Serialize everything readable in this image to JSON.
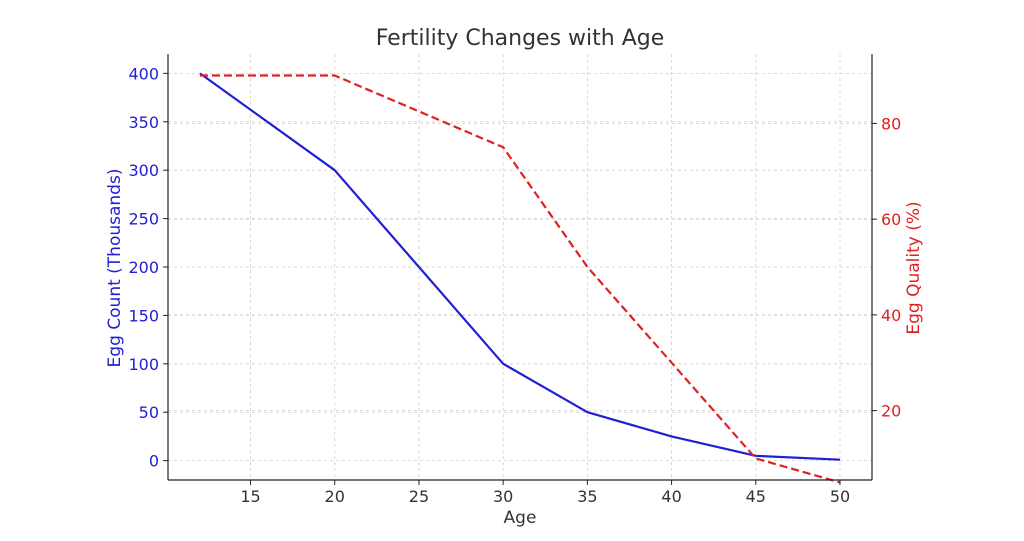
{
  "chart_data": {
    "type": "line",
    "title": "Fertility Changes with Age",
    "xlabel": "Age",
    "xlim": [
      10.1,
      51.9
    ],
    "x_ticks": [
      15,
      20,
      25,
      30,
      35,
      40,
      45,
      50
    ],
    "grid": true,
    "y_left": {
      "label": "Egg Count (Thousands)",
      "color": "#1f1fd6",
      "lim": [
        -20,
        420
      ],
      "ticks": [
        0,
        50,
        100,
        150,
        200,
        250,
        300,
        350,
        400
      ]
    },
    "y_right": {
      "label": "Egg Quality (%)",
      "color": "#e02020",
      "lim": [
        5.5,
        94.5
      ],
      "ticks": [
        20,
        40,
        60,
        80
      ]
    },
    "series": [
      {
        "axis": "left",
        "style": "solid",
        "color": "#1f1fd6",
        "x": [
          12,
          20,
          30,
          35,
          40,
          45,
          50
        ],
        "values": [
          400,
          300,
          100,
          50,
          25,
          5,
          1
        ]
      },
      {
        "axis": "right",
        "style": "dashed",
        "color": "#e02020",
        "x": [
          12,
          20,
          30,
          35,
          40,
          45,
          50
        ],
        "values": [
          90,
          90,
          75,
          50,
          30,
          10,
          5
        ]
      }
    ]
  }
}
